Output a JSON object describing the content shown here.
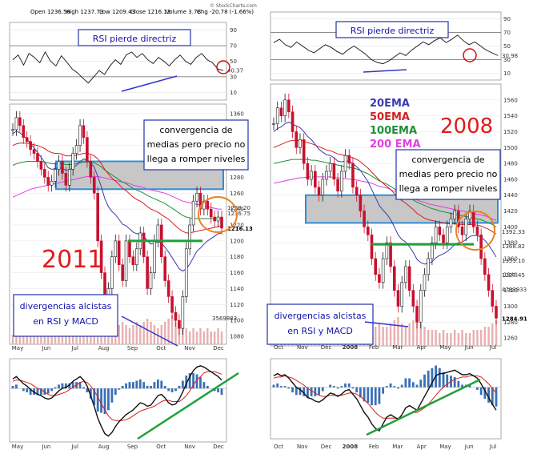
{
  "header": {
    "open_label": "Open",
    "open_value": "1236.56",
    "high_label": "High",
    "high_value": "1237.73",
    "low_label": "Low",
    "low_value": "1209.43",
    "close_label": "Close",
    "close_value": "1216.13",
    "volume_label": "Volume",
    "volume_value": "3.7B",
    "chg_label": "Chg",
    "chg_value": "-20.78 (-1.66%)",
    "watermark": "© StockCharts.com"
  },
  "colors": {
    "price_up": "#1a1a1a",
    "price_down": "#c8102e",
    "ema20": "#3b3bb0",
    "ema50": "#d42020",
    "ema100": "#1f8f3a",
    "ema200": "#e040e0",
    "resistance_box": "#bdbdbd",
    "resistance_border": "#2f8fd8",
    "support_line": "#1fa03a",
    "divergence_line": "#3333cc",
    "macd_hist": "#3a6fb5",
    "callout_ring": "#f08020",
    "rsi_circle": "#d01010"
  },
  "chart_data": [
    {
      "id": "2011",
      "type": "line",
      "title": "2011",
      "rsi_label": "RSI pierde directriz",
      "annotation_convergence": [
        "convergencia de",
        "medias pero precio no",
        "llega a romper niveles"
      ],
      "annotation_divergence": [
        "divergencias alcistas",
        "en RSI y MACD"
      ],
      "x_ticks": [
        "May",
        "Jun",
        "Jul",
        "Aug",
        "Sep",
        "Oct",
        "Nov",
        "Dec"
      ],
      "rsi": {
        "ticks": [
          90,
          70,
          50,
          30,
          10
        ],
        "last_value_label": "40.37",
        "values": [
          52,
          58,
          45,
          60,
          55,
          48,
          62,
          50,
          44,
          57,
          49,
          40,
          35,
          28,
          22,
          30,
          38,
          33,
          44,
          52,
          46,
          58,
          62,
          55,
          60,
          52,
          47,
          55,
          50,
          44,
          52,
          58,
          50,
          46,
          55,
          60,
          52,
          48,
          40,
          38
        ]
      },
      "price": {
        "ticks": [
          1360,
          1340,
          1320,
          1300,
          1280,
          1260,
          1240,
          1220,
          1200,
          1180,
          1160,
          1140,
          1120,
          1100,
          1080
        ],
        "ylim": [
          1070,
          1372
        ],
        "last_label": "1216.13",
        "ema_labels": [
          "1239.20",
          "1236.75"
        ],
        "values": [
          1340,
          1355,
          1345,
          1330,
          1325,
          1315,
          1310,
          1300,
          1290,
          1280,
          1270,
          1275,
          1290,
          1300,
          1285,
          1270,
          1290,
          1310,
          1320,
          1345,
          1330,
          1300,
          1280,
          1260,
          1200,
          1160,
          1120,
          1140,
          1180,
          1200,
          1170,
          1150,
          1200,
          1180,
          1170,
          1190,
          1210,
          1180,
          1140,
          1160,
          1200,
          1220,
          1180,
          1150,
          1130,
          1110,
          1100,
          1090,
          1130,
          1190,
          1220,
          1250,
          1260,
          1240,
          1250,
          1240,
          1230,
          1225,
          1230,
          1216
        ],
        "ema20": [
          1335,
          1338,
          1336,
          1332,
          1328,
          1322,
          1317,
          1311,
          1305,
          1299,
          1292,
          1290,
          1291,
          1292,
          1291,
          1289,
          1289,
          1292,
          1295,
          1300,
          1303,
          1301,
          1298,
          1293,
          1281,
          1268,
          1253,
          1243,
          1237,
          1233,
          1227,
          1221,
          1219,
          1215,
          1211,
          1209,
          1209,
          1206,
          1200,
          1196,
          1197,
          1199,
          1197,
          1192,
          1186,
          1179,
          1172,
          1165,
          1162,
          1165,
          1171,
          1179,
          1187,
          1191,
          1196,
          1200,
          1203,
          1206,
          1209,
          1210
        ],
        "ema50": [
          1320,
          1322,
          1323,
          1323,
          1323,
          1322,
          1321,
          1320,
          1318,
          1316,
          1313,
          1311,
          1310,
          1310,
          1309,
          1307,
          1307,
          1307,
          1308,
          1309,
          1310,
          1310,
          1309,
          1307,
          1303,
          1297,
          1290,
          1284,
          1279,
          1275,
          1271,
          1266,
          1263,
          1259,
          1255,
          1252,
          1250,
          1247,
          1243,
          1240,
          1238,
          1236,
          1233,
          1230,
          1227,
          1223,
          1219,
          1215,
          1212,
          1210,
          1210,
          1211,
          1212,
          1213,
          1214,
          1215,
          1216,
          1217,
          1218,
          1219
        ],
        "ema100": [
          1295,
          1297,
          1298,
          1299,
          1300,
          1300,
          1300,
          1300,
          1300,
          1299,
          1298,
          1297,
          1297,
          1297,
          1297,
          1296,
          1296,
          1296,
          1297,
          1298,
          1299,
          1299,
          1299,
          1298,
          1296,
          1293,
          1289,
          1286,
          1283,
          1280,
          1277,
          1274,
          1272,
          1269,
          1266,
          1264,
          1262,
          1260,
          1257,
          1255,
          1253,
          1251,
          1249,
          1247,
          1244,
          1241,
          1238,
          1235,
          1232,
          1230,
          1229,
          1228,
          1228,
          1228,
          1228,
          1228,
          1228,
          1228,
          1228,
          1228
        ],
        "ema200": [
          1255,
          1257,
          1259,
          1261,
          1263,
          1265,
          1266,
          1267,
          1268,
          1269,
          1270,
          1271,
          1272,
          1273,
          1274,
          1275,
          1276,
          1277,
          1278,
          1279,
          1280,
          1281,
          1281,
          1281,
          1281,
          1280,
          1279,
          1278,
          1277,
          1276,
          1275,
          1274,
          1273,
          1272,
          1270,
          1269,
          1268,
          1267,
          1265,
          1264,
          1263,
          1262,
          1261,
          1260,
          1258,
          1256,
          1254,
          1252,
          1250,
          1249,
          1248,
          1247,
          1246,
          1245,
          1244,
          1243,
          1242,
          1241,
          1240,
          1240
        ],
        "resistance_zone": [
          1265,
          1300
        ],
        "support_level": 1200
      },
      "volume": [
        3,
        4,
        3,
        5,
        4,
        3,
        4,
        3,
        4,
        5,
        4,
        3,
        4,
        4,
        3,
        4,
        5,
        4,
        3,
        4,
        6,
        8,
        9,
        10,
        9,
        8,
        7,
        8,
        6,
        7,
        6,
        7,
        6,
        5,
        6,
        7,
        6,
        7,
        8,
        7,
        6,
        5,
        6,
        7,
        8,
        9,
        7,
        6,
        5,
        5,
        4,
        5,
        4,
        5,
        4,
        5,
        4,
        4,
        5,
        4
      ],
      "volume_label": "3569883",
      "macd": {
        "macd": [
          8,
          10,
          7,
          4,
          2,
          -1,
          -3,
          -5,
          -6,
          -8,
          -9,
          -8,
          -5,
          -2,
          0,
          1,
          3,
          6,
          8,
          10,
          7,
          2,
          -6,
          -15,
          -25,
          -32,
          -38,
          -40,
          -37,
          -32,
          -28,
          -25,
          -22,
          -20,
          -18,
          -15,
          -12,
          -13,
          -15,
          -14,
          -10,
          -6,
          -5,
          -8,
          -12,
          -14,
          -13,
          -9,
          -3,
          4,
          10,
          15,
          18,
          19,
          18,
          16,
          14,
          12,
          10,
          7
        ],
        "signal": [
          6,
          7,
          7,
          6,
          5,
          4,
          2,
          0,
          -1,
          -3,
          -5,
          -6,
          -6,
          -5,
          -4,
          -3,
          -1,
          1,
          3,
          5,
          6,
          5,
          2,
          -2,
          -7,
          -13,
          -18,
          -23,
          -26,
          -27,
          -27,
          -27,
          -26,
          -25,
          -23,
          -21,
          -19,
          -18,
          -17,
          -16,
          -15,
          -13,
          -11,
          -10,
          -10,
          -11,
          -11,
          -11,
          -9,
          -6,
          -2,
          3,
          7,
          10,
          13,
          14,
          14,
          14,
          13,
          12
        ]
      }
    },
    {
      "id": "2008",
      "type": "line",
      "title": "2008",
      "rsi_label": "RSI pierde directriz",
      "annotation_convergence": [
        "convergencia de",
        "medias pero precio no",
        "llega a romper niveles"
      ],
      "annotation_divergence": [
        "divergencias alcistas",
        "en RSI y MACD"
      ],
      "legend": [
        "20EMA",
        "50EMA",
        "100EMA",
        "200 EMA"
      ],
      "x_ticks": [
        "Oct",
        "Nov",
        "Dec",
        "2008",
        "Feb",
        "Mar",
        "Apr",
        "May",
        "Jun",
        "Jul"
      ],
      "rsi": {
        "ticks": [
          90,
          70,
          50,
          30,
          10
        ],
        "last_value_label": "30.98",
        "values": [
          55,
          60,
          52,
          48,
          56,
          50,
          44,
          40,
          46,
          52,
          48,
          42,
          38,
          45,
          50,
          44,
          38,
          30,
          26,
          24,
          28,
          34,
          40,
          36,
          44,
          50,
          56,
          52,
          58,
          62,
          55,
          60,
          66,
          58,
          52,
          56,
          50,
          44,
          40,
          36
        ]
      },
      "price": {
        "ticks": [
          1560,
          1540,
          1520,
          1500,
          1480,
          1460,
          1440,
          1420,
          1400,
          1380,
          1360,
          1340,
          1320,
          1300,
          1280,
          1260
        ],
        "ylim": [
          1250,
          1580
        ],
        "last_label": "1284.91",
        "ema_labels": [
          "1392.33",
          "1368.82",
          "1353.10",
          "1327.45",
          "4793933"
        ],
        "values": [
          1530,
          1550,
          1540,
          1560,
          1545,
          1520,
          1500,
          1510,
          1480,
          1460,
          1470,
          1450,
          1440,
          1460,
          1470,
          1480,
          1460,
          1445,
          1470,
          1490,
          1480,
          1450,
          1440,
          1420,
          1400,
          1390,
          1360,
          1340,
          1330,
          1360,
          1380,
          1350,
          1320,
          1300,
          1330,
          1350,
          1320,
          1300,
          1280,
          1320,
          1340,
          1360,
          1380,
          1400,
          1390,
          1380,
          1400,
          1410,
          1420,
          1400,
          1390,
          1410,
          1420,
          1400,
          1390,
          1360,
          1340,
          1320,
          1300,
          1285
        ],
        "ema20": [
          1520,
          1524,
          1526,
          1530,
          1532,
          1530,
          1527,
          1525,
          1520,
          1514,
          1510,
          1504,
          1498,
          1494,
          1491,
          1490,
          1487,
          1483,
          1482,
          1483,
          1483,
          1480,
          1476,
          1471,
          1464,
          1457,
          1447,
          1437,
          1427,
          1421,
          1416,
          1409,
          1400,
          1390,
          1384,
          1381,
          1375,
          1368,
          1359,
          1355,
          1353,
          1354,
          1356,
          1361,
          1364,
          1366,
          1369,
          1373,
          1378,
          1380,
          1381,
          1384,
          1388,
          1389,
          1389,
          1387,
          1383,
          1377,
          1370,
          1362
        ],
        "ema50": [
          1500,
          1502,
          1504,
          1506,
          1508,
          1509,
          1509,
          1509,
          1508,
          1506,
          1505,
          1503,
          1501,
          1499,
          1497,
          1496,
          1494,
          1492,
          1491,
          1490,
          1489,
          1487,
          1485,
          1482,
          1478,
          1474,
          1469,
          1464,
          1459,
          1455,
          1451,
          1447,
          1442,
          1437,
          1433,
          1430,
          1426,
          1422,
          1417,
          1414,
          1411,
          1409,
          1408,
          1407,
          1406,
          1405,
          1404,
          1404,
          1404,
          1403,
          1403,
          1403,
          1403,
          1403,
          1402,
          1401,
          1399,
          1397,
          1394,
          1391
        ],
        "ema100": [
          1480,
          1481,
          1482,
          1483,
          1484,
          1485,
          1485,
          1485,
          1485,
          1485,
          1484,
          1484,
          1483,
          1482,
          1481,
          1480,
          1479,
          1478,
          1477,
          1476,
          1475,
          1474,
          1473,
          1471,
          1469,
          1467,
          1464,
          1461,
          1458,
          1456,
          1454,
          1451,
          1448,
          1445,
          1442,
          1440,
          1437,
          1434,
          1431,
          1429,
          1427,
          1425,
          1423,
          1422,
          1420,
          1419,
          1418,
          1417,
          1416,
          1415,
          1414,
          1413,
          1412,
          1411,
          1410,
          1409,
          1407,
          1405,
          1403,
          1400
        ],
        "ema200": [
          1455,
          1456,
          1457,
          1458,
          1459,
          1460,
          1461,
          1462,
          1462,
          1463,
          1463,
          1463,
          1463,
          1463,
          1463,
          1463,
          1462,
          1462,
          1461,
          1461,
          1460,
          1460,
          1459,
          1458,
          1457,
          1456,
          1455,
          1453,
          1451,
          1450,
          1449,
          1447,
          1445,
          1443,
          1441,
          1440,
          1438,
          1436,
          1434,
          1432,
          1431,
          1429,
          1428,
          1427,
          1426,
          1425,
          1424,
          1423,
          1422,
          1421,
          1420,
          1419,
          1418,
          1417,
          1416,
          1415,
          1414,
          1412,
          1410,
          1408
        ],
        "resistance_zone": [
          1405,
          1440
        ],
        "support_level": 1378
      },
      "volume": [
        3,
        3,
        4,
        3,
        4,
        5,
        4,
        5,
        4,
        5,
        6,
        5,
        4,
        5,
        4,
        4,
        5,
        4,
        4,
        5,
        5,
        6,
        6,
        7,
        8,
        9,
        7,
        6,
        7,
        6,
        6,
        7,
        8,
        9,
        7,
        6,
        7,
        8,
        9,
        7,
        6,
        5,
        5,
        5,
        4,
        5,
        4,
        4,
        5,
        4,
        5,
        4,
        4,
        5,
        5,
        5,
        6,
        6,
        7,
        8
      ],
      "macd": {
        "macd": [
          10,
          12,
          10,
          11,
          8,
          4,
          0,
          -2,
          -5,
          -9,
          -10,
          -12,
          -13,
          -11,
          -8,
          -5,
          -6,
          -8,
          -6,
          -3,
          -2,
          -6,
          -10,
          -16,
          -22,
          -26,
          -32,
          -36,
          -38,
          -32,
          -26,
          -24,
          -26,
          -28,
          -24,
          -18,
          -16,
          -18,
          -20,
          -14,
          -8,
          -2,
          4,
          10,
          12,
          12,
          13,
          14,
          15,
          13,
          11,
          11,
          12,
          10,
          8,
          3,
          -3,
          -9,
          -15,
          -20
        ],
        "signal": [
          8,
          9,
          9,
          10,
          9,
          8,
          6,
          4,
          2,
          -1,
          -3,
          -5,
          -7,
          -8,
          -8,
          -7,
          -7,
          -7,
          -7,
          -6,
          -5,
          -5,
          -6,
          -8,
          -11,
          -14,
          -18,
          -22,
          -25,
          -27,
          -27,
          -27,
          -27,
          -27,
          -26,
          -25,
          -23,
          -22,
          -22,
          -20,
          -18,
          -15,
          -11,
          -7,
          -3,
          0,
          3,
          5,
          7,
          8,
          9,
          9,
          10,
          10,
          10,
          9,
          6,
          3,
          -1,
          -5
        ]
      }
    }
  ]
}
